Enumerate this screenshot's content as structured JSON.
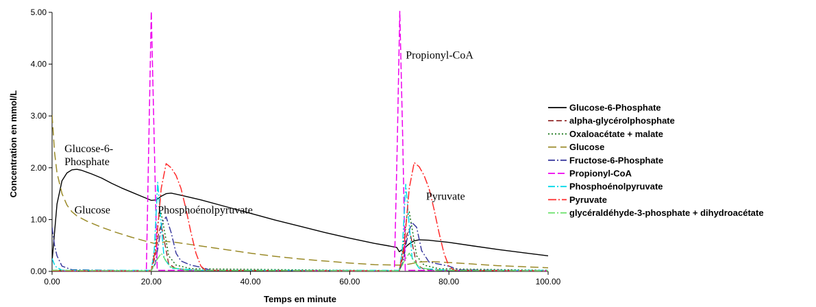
{
  "chart_data": {
    "type": "line",
    "title": "",
    "xlabel": "Temps en minute",
    "ylabel": "Concentration en mmol/L",
    "xlim": [
      0,
      100
    ],
    "ylim": [
      0,
      5
    ],
    "x_ticks": [
      "0.00",
      "20.00",
      "40.00",
      "60.00",
      "80.00",
      "100.00"
    ],
    "y_ticks": [
      "0.00",
      "1.00",
      "2.00",
      "3.00",
      "4.00",
      "5.00"
    ],
    "grid": false,
    "legend_position": "right",
    "annotations": [
      {
        "text": "Glucose-6-",
        "x": 2.5,
        "y": 2.3
      },
      {
        "text": "Phosphate",
        "x": 2.5,
        "y": 2.05
      },
      {
        "text": "Glucose",
        "x": 4.5,
        "y": 1.12
      },
      {
        "text": "Phosphoénolpyruvate",
        "x": 21.3,
        "y": 1.12
      },
      {
        "text": "Propionyl-CoA",
        "x": 71.3,
        "y": 4.11
      },
      {
        "text": "Pyruvate",
        "x": 75.4,
        "y": 1.38
      }
    ],
    "series": [
      {
        "name": "Glucose-6-Phosphate",
        "color": "#000000",
        "dash": "",
        "width": 1.4,
        "points": [
          [
            0,
            0.2
          ],
          [
            1,
            1.3
          ],
          [
            2,
            1.75
          ],
          [
            3,
            1.9
          ],
          [
            4,
            1.96
          ],
          [
            5,
            1.97
          ],
          [
            6,
            1.95
          ],
          [
            8,
            1.88
          ],
          [
            10,
            1.8
          ],
          [
            12,
            1.7
          ],
          [
            14,
            1.61
          ],
          [
            16,
            1.53
          ],
          [
            18,
            1.45
          ],
          [
            19,
            1.41
          ],
          [
            20,
            1.37
          ],
          [
            21,
            1.38
          ],
          [
            22,
            1.45
          ],
          [
            23,
            1.5
          ],
          [
            24,
            1.51
          ],
          [
            26,
            1.47
          ],
          [
            30,
            1.38
          ],
          [
            35,
            1.25
          ],
          [
            40,
            1.12
          ],
          [
            45,
            0.99
          ],
          [
            50,
            0.87
          ],
          [
            55,
            0.75
          ],
          [
            60,
            0.64
          ],
          [
            65,
            0.54
          ],
          [
            68,
            0.49
          ],
          [
            69.5,
            0.46
          ],
          [
            70,
            0.38
          ],
          [
            71,
            0.45
          ],
          [
            72,
            0.53
          ],
          [
            73,
            0.59
          ],
          [
            74,
            0.61
          ],
          [
            76,
            0.6
          ],
          [
            80,
            0.56
          ],
          [
            85,
            0.49
          ],
          [
            90,
            0.42
          ],
          [
            95,
            0.36
          ],
          [
            100,
            0.3
          ]
        ]
      },
      {
        "name": "alpha-glycérolphosphate",
        "color": "#8b1a1a",
        "dash": "8,4",
        "width": 1.3,
        "points": [
          [
            0,
            0.02
          ],
          [
            20,
            0.01
          ],
          [
            20.8,
            0.3
          ],
          [
            21.5,
            0.75
          ],
          [
            22,
            0.9
          ],
          [
            22.8,
            0.5
          ],
          [
            23.5,
            0.15
          ],
          [
            25,
            0.05
          ],
          [
            30,
            0.02
          ],
          [
            70,
            0.01
          ],
          [
            70.8,
            0.3
          ],
          [
            71.5,
            0.7
          ],
          [
            72,
            0.82
          ],
          [
            72.8,
            0.45
          ],
          [
            73.5,
            0.13
          ],
          [
            75,
            0.04
          ],
          [
            80,
            0.02
          ],
          [
            100,
            0.01
          ]
        ]
      },
      {
        "name": "Oxaloacétate + malate",
        "color": "#1f7a1f",
        "dash": "2,3",
        "width": 1.6,
        "points": [
          [
            0,
            0.02
          ],
          [
            20,
            0.01
          ],
          [
            20.8,
            0.5
          ],
          [
            21.5,
            1.05
          ],
          [
            22,
            1.12
          ],
          [
            22.8,
            0.7
          ],
          [
            23.5,
            0.3
          ],
          [
            25,
            0.12
          ],
          [
            28,
            0.05
          ],
          [
            70,
            0.01
          ],
          [
            70.8,
            0.5
          ],
          [
            71.5,
            1.05
          ],
          [
            72,
            1.15
          ],
          [
            72.8,
            0.7
          ],
          [
            73.5,
            0.3
          ],
          [
            75,
            0.12
          ],
          [
            78,
            0.05
          ],
          [
            100,
            0.02
          ]
        ]
      },
      {
        "name": "Glucose",
        "color": "#9a8a28",
        "dash": "12,6",
        "width": 1.5,
        "points": [
          [
            0,
            3.02
          ],
          [
            0.5,
            2.3
          ],
          [
            1,
            1.9
          ],
          [
            2,
            1.5
          ],
          [
            3,
            1.28
          ],
          [
            4,
            1.15
          ],
          [
            5,
            1.07
          ],
          [
            7,
            0.97
          ],
          [
            10,
            0.85
          ],
          [
            13,
            0.75
          ],
          [
            16,
            0.66
          ],
          [
            19,
            0.58
          ],
          [
            21,
            0.53
          ],
          [
            22,
            0.55
          ],
          [
            23,
            0.58
          ],
          [
            25,
            0.56
          ],
          [
            30,
            0.49
          ],
          [
            35,
            0.42
          ],
          [
            40,
            0.35
          ],
          [
            45,
            0.29
          ],
          [
            50,
            0.24
          ],
          [
            55,
            0.2
          ],
          [
            60,
            0.16
          ],
          [
            65,
            0.13
          ],
          [
            70,
            0.12
          ],
          [
            72,
            0.14
          ],
          [
            74,
            0.18
          ],
          [
            76,
            0.19
          ],
          [
            80,
            0.17
          ],
          [
            85,
            0.14
          ],
          [
            90,
            0.11
          ],
          [
            95,
            0.09
          ],
          [
            100,
            0.07
          ]
        ]
      },
      {
        "name": "Fructose-6-Phosphate",
        "color": "#3a3a9e",
        "dash": "10,3,2,3",
        "width": 1.5,
        "points": [
          [
            0,
            0.85
          ],
          [
            0.5,
            0.5
          ],
          [
            1,
            0.3
          ],
          [
            2,
            0.1
          ],
          [
            4,
            0.03
          ],
          [
            20,
            0.01
          ],
          [
            20.8,
            0.15
          ],
          [
            21.5,
            0.55
          ],
          [
            22.2,
            0.95
          ],
          [
            23,
            1.05
          ],
          [
            24,
            0.75
          ],
          [
            25,
            0.35
          ],
          [
            26,
            0.2
          ],
          [
            28,
            0.12
          ],
          [
            30,
            0.08
          ],
          [
            32,
            0.02
          ],
          [
            70,
            0.01
          ],
          [
            70.8,
            0.2
          ],
          [
            71.5,
            0.6
          ],
          [
            72.5,
            0.95
          ],
          [
            73.5,
            0.85
          ],
          [
            74.5,
            0.4
          ],
          [
            76,
            0.18
          ],
          [
            80,
            0.1
          ],
          [
            82,
            0.03
          ],
          [
            100,
            0.01
          ]
        ]
      },
      {
        "name": "Propionyl-CoA",
        "color": "#ee00ee",
        "dash": "10,4",
        "width": 1.5,
        "points": [
          [
            0,
            0.01
          ],
          [
            19,
            0.01
          ],
          [
            19.5,
            2.5
          ],
          [
            20,
            5.02
          ],
          [
            20.6,
            2.5
          ],
          [
            21.2,
            0.02
          ],
          [
            69,
            0.01
          ],
          [
            69.6,
            2.5
          ],
          [
            70.1,
            5.02
          ],
          [
            70.7,
            2.5
          ],
          [
            71.2,
            0.02
          ],
          [
            100,
            0.01
          ]
        ]
      },
      {
        "name": "Phosphoénolpyruvate",
        "color": "#00d8e8",
        "dash": "10,3,2,3",
        "width": 1.5,
        "points": [
          [
            0,
            0.25
          ],
          [
            0.6,
            0.1
          ],
          [
            2,
            0.02
          ],
          [
            20,
            0.02
          ],
          [
            20.6,
            0.4
          ],
          [
            21.3,
            1.72
          ],
          [
            21.9,
            1.0
          ],
          [
            22.6,
            0.25
          ],
          [
            24,
            0.06
          ],
          [
            30,
            0.02
          ],
          [
            70,
            0.02
          ],
          [
            70.6,
            0.4
          ],
          [
            71.3,
            1.68
          ],
          [
            71.9,
            1.0
          ],
          [
            72.6,
            0.25
          ],
          [
            74,
            0.06
          ],
          [
            80,
            0.02
          ],
          [
            100,
            0.02
          ]
        ]
      },
      {
        "name": "Pyruvate",
        "color": "#ff2a2a",
        "dash": "12,3,2,3",
        "width": 1.5,
        "points": [
          [
            0,
            0.01
          ],
          [
            20,
            0.01
          ],
          [
            21,
            0.5
          ],
          [
            22,
            1.6
          ],
          [
            23,
            2.08
          ],
          [
            24,
            2.0
          ],
          [
            25,
            1.85
          ],
          [
            26,
            1.6
          ],
          [
            27,
            1.2
          ],
          [
            28,
            0.75
          ],
          [
            29,
            0.35
          ],
          [
            30,
            0.1
          ],
          [
            31,
            0.02
          ],
          [
            70,
            0.01
          ],
          [
            71,
            0.5
          ],
          [
            72,
            1.6
          ],
          [
            73,
            2.1
          ],
          [
            74,
            2.02
          ],
          [
            75,
            1.85
          ],
          [
            76,
            1.6
          ],
          [
            77,
            1.2
          ],
          [
            78,
            0.75
          ],
          [
            79,
            0.35
          ],
          [
            80,
            0.1
          ],
          [
            81,
            0.02
          ],
          [
            100,
            0.01
          ]
        ]
      },
      {
        "name": "glycéraldéhyde-3-phosphate + dihydroacétate",
        "color": "#66e066",
        "dash": "10,3,2,3",
        "width": 1.4,
        "points": [
          [
            0,
            0.02
          ],
          [
            20,
            0.01
          ],
          [
            21,
            0.2
          ],
          [
            22,
            0.35
          ],
          [
            23,
            0.2
          ],
          [
            24,
            0.08
          ],
          [
            27,
            0.02
          ],
          [
            70,
            0.01
          ],
          [
            71,
            0.2
          ],
          [
            72,
            0.35
          ],
          [
            73,
            0.2
          ],
          [
            74,
            0.08
          ],
          [
            77,
            0.02
          ],
          [
            100,
            0.01
          ]
        ]
      }
    ]
  }
}
